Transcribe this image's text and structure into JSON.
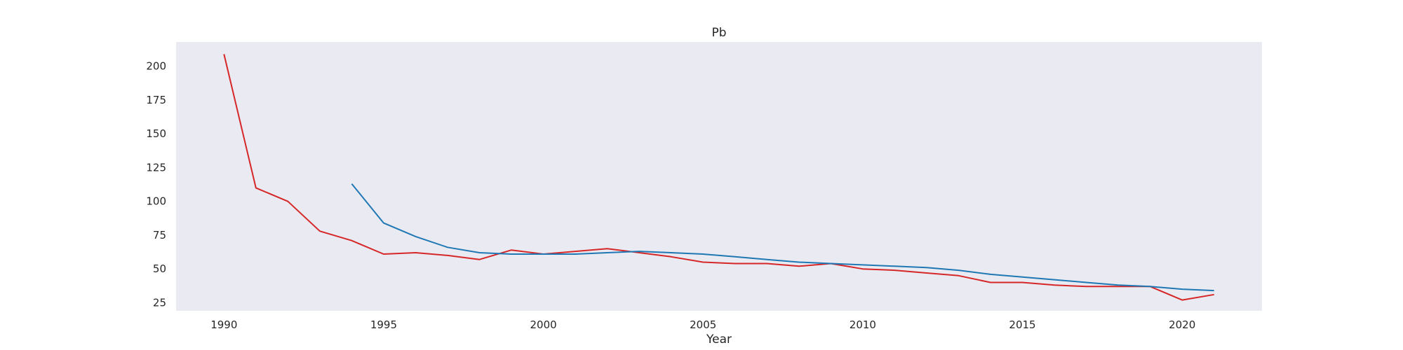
{
  "chart_data": {
    "type": "line",
    "title": "Pb",
    "xlabel": "Year",
    "ylabel": "",
    "xlim": [
      1988.5,
      2022.5
    ],
    "ylim": [
      19,
      218
    ],
    "xticks": [
      1990,
      1995,
      2000,
      2005,
      2010,
      2015,
      2020
    ],
    "yticks": [
      25,
      50,
      75,
      100,
      125,
      150,
      175,
      200
    ],
    "grid": false,
    "background_color": "#eaeaf2",
    "series": [
      {
        "color": "#d62728",
        "x": [
          1990,
          1991,
          1992,
          1993,
          1994,
          1995,
          1996,
          1997,
          1998,
          1999,
          2000,
          2001,
          2002,
          2003,
          2004,
          2005,
          2006,
          2007,
          2008,
          2009,
          2010,
          2011,
          2012,
          2013,
          2014,
          2015,
          2016,
          2017,
          2018,
          2019,
          2020,
          2021
        ],
        "values": [
          209,
          110,
          100,
          78,
          71,
          61,
          62,
          60,
          57,
          64,
          61,
          63,
          65,
          62,
          59,
          55,
          54,
          54,
          52,
          54,
          50,
          49,
          47,
          45,
          40,
          40,
          38,
          37,
          37,
          37,
          27,
          31
        ]
      },
      {
        "color": "#1f77b4",
        "x": [
          1994,
          1995,
          1996,
          1997,
          1998,
          1999,
          2000,
          2001,
          2002,
          2003,
          2004,
          2005,
          2006,
          2007,
          2008,
          2009,
          2010,
          2011,
          2012,
          2013,
          2014,
          2015,
          2016,
          2017,
          2018,
          2019,
          2020,
          2021
        ],
        "values": [
          113,
          84,
          74,
          66,
          62,
          61,
          61,
          61,
          62,
          63,
          62,
          61,
          59,
          57,
          55,
          54,
          53,
          52,
          51,
          49,
          46,
          44,
          42,
          40,
          38,
          37,
          35,
          34
        ]
      }
    ]
  }
}
